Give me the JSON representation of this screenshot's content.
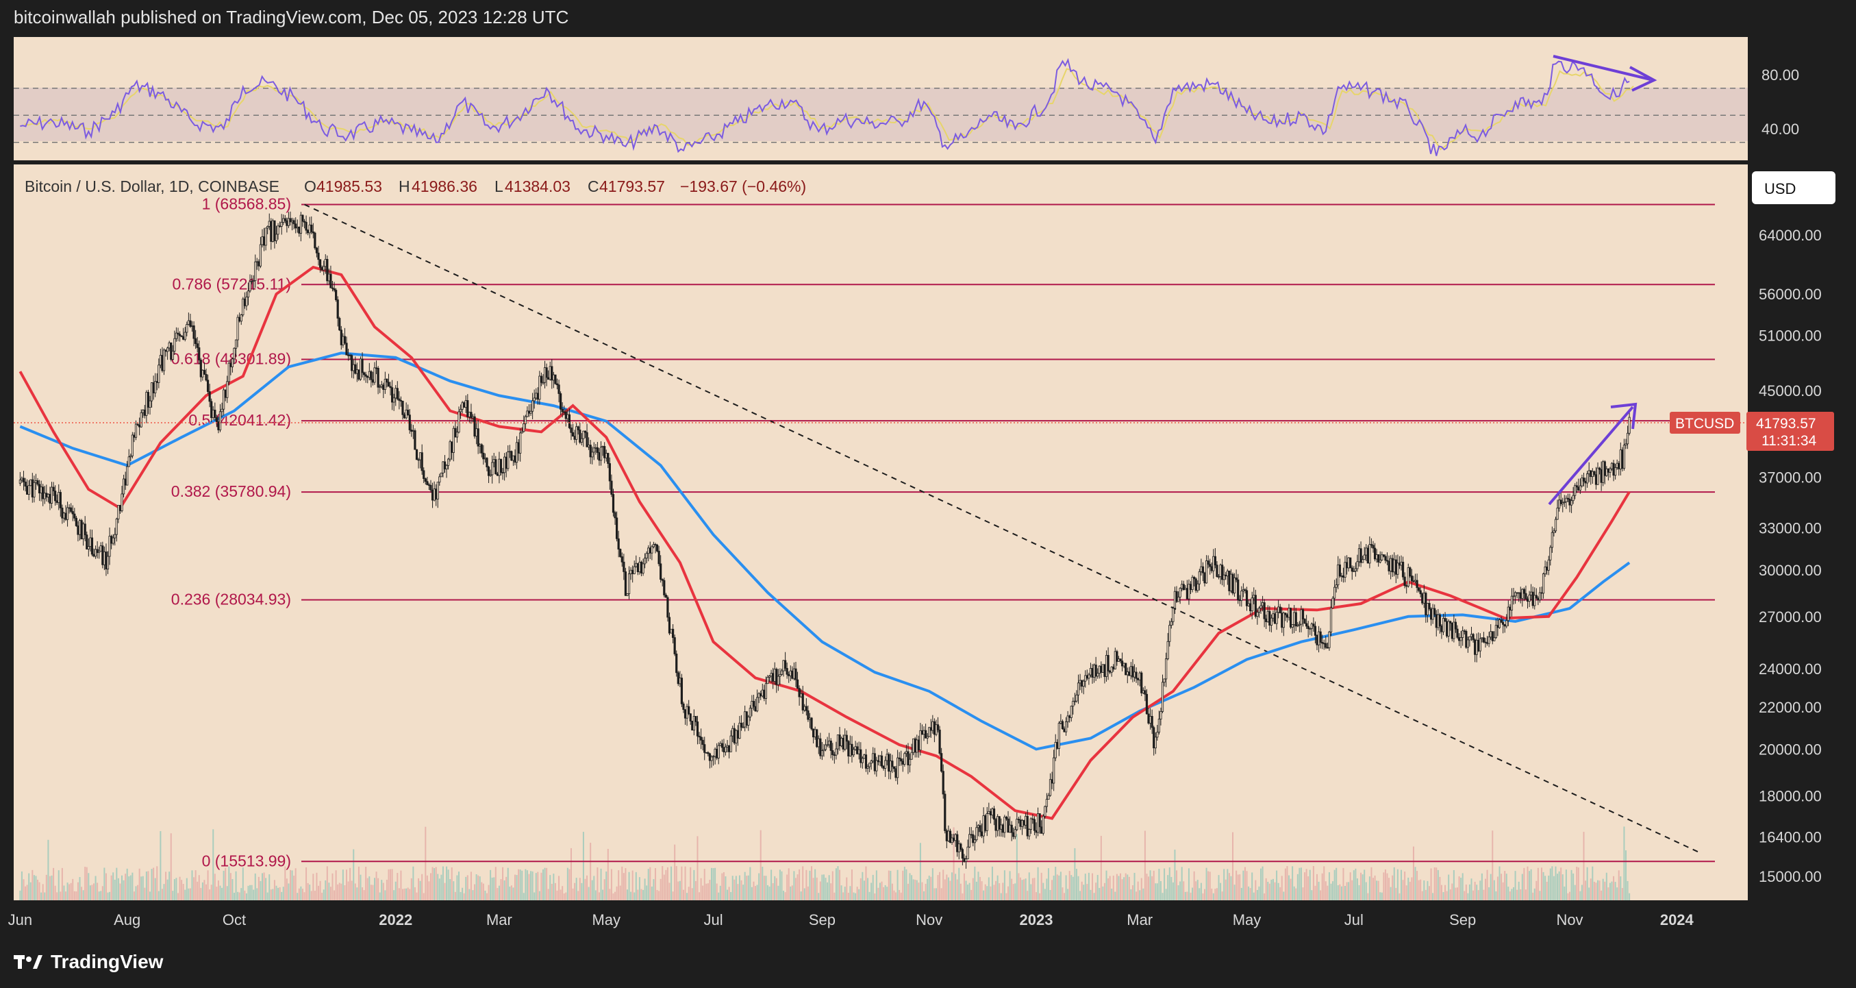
{
  "header": {
    "publisher": "bitcoinwallah published on TradingView.com, Dec 05, 2023 12:28 UTC"
  },
  "footer": {
    "brand": "TradingView"
  },
  "colors": {
    "panel_bg": "#f2dfca",
    "page_bg": "#1e1e1e",
    "fib_line": "#b0174a",
    "ma_red": "#e8343f",
    "ma_blue": "#2a8ff0",
    "rsi": "#7b5be0",
    "rsi_signal": "#e7d56a",
    "arrow": "#6d3fd6",
    "price_badge": "#d94c45",
    "candle_up": "#1d1d1d",
    "candle_down": "#1d1d1d"
  },
  "main": {
    "symbol_line": "Bitcoin / U.S. Dollar, 1D, COINBASE",
    "ohlc": {
      "o_label": "O",
      "o": "41985.53",
      "h_label": "H",
      "h": "41986.36",
      "l_label": "L",
      "l": "41384.03",
      "c_label": "C",
      "c": "41793.57",
      "change": "−193.67 (−0.46%)"
    },
    "currency_button": "USD",
    "price_badge": {
      "symbol": "BTCUSD",
      "price": "41793.57",
      "countdown": "11:31:34"
    }
  },
  "chart_data": {
    "type": "line",
    "title": "Bitcoin / U.S. Dollar, 1D, COINBASE",
    "scale": "log",
    "x_ticks": [
      "Jun",
      "Aug",
      "Oct",
      "2022",
      "Mar",
      "May",
      "Jul",
      "Sep",
      "Nov",
      "2023",
      "Mar",
      "May",
      "Jul",
      "Sep",
      "Nov",
      "2024"
    ],
    "y_ticks": [
      "64000.00",
      "56000.00",
      "51000.00",
      "45000.00",
      "37000.00",
      "33000.00",
      "30000.00",
      "27000.00",
      "24000.00",
      "22000.00",
      "20000.00",
      "18000.00",
      "16400.00",
      "15000.00"
    ],
    "fib_levels": [
      {
        "label": "1 (68568.85)",
        "value": 68568.85
      },
      {
        "label": "0.786 (57215.11)",
        "value": 57215.11
      },
      {
        "label": "0.618 (48301.89)",
        "value": 48301.89
      },
      {
        "label": "0.5 (42041.42)",
        "value": 42041.42
      },
      {
        "label": "0.382 (35780.94)",
        "value": 35780.94
      },
      {
        "label": "0.236 (28034.93)",
        "value": 28034.93
      },
      {
        "label": "0 (15513.99)",
        "value": 15513.99
      }
    ],
    "price_close": [
      [
        "2021-06-01",
        36500
      ],
      [
        "2021-06-20",
        35500
      ],
      [
        "2021-07-01",
        33500
      ],
      [
        "2021-07-20",
        30500
      ],
      [
        "2021-08-05",
        40500
      ],
      [
        "2021-08-20",
        48000
      ],
      [
        "2021-09-06",
        52000
      ],
      [
        "2021-09-21",
        41000
      ],
      [
        "2021-10-06",
        55000
      ],
      [
        "2021-10-20",
        64500
      ],
      [
        "2021-11-10",
        66000
      ],
      [
        "2021-11-25",
        57500
      ],
      [
        "2021-12-04",
        48000
      ],
      [
        "2021-12-20",
        46500
      ],
      [
        "2022-01-05",
        43500
      ],
      [
        "2022-01-22",
        35000
      ],
      [
        "2022-02-10",
        44000
      ],
      [
        "2022-02-24",
        37500
      ],
      [
        "2022-03-10",
        39000
      ],
      [
        "2022-03-28",
        47500
      ],
      [
        "2022-04-15",
        40500
      ],
      [
        "2022-05-01",
        38500
      ],
      [
        "2022-05-12",
        29000
      ],
      [
        "2022-05-30",
        31500
      ],
      [
        "2022-06-14",
        22000
      ],
      [
        "2022-06-30",
        19500
      ],
      [
        "2022-07-15",
        20800
      ],
      [
        "2022-08-01",
        23000
      ],
      [
        "2022-08-14",
        24300
      ],
      [
        "2022-08-30",
        20000
      ],
      [
        "2022-09-13",
        20200
      ],
      [
        "2022-09-28",
        19500
      ],
      [
        "2022-10-15",
        19200
      ],
      [
        "2022-10-29",
        20700
      ],
      [
        "2022-11-06",
        21000
      ],
      [
        "2022-11-10",
        16700
      ],
      [
        "2022-11-21",
        15900
      ],
      [
        "2022-12-05",
        17100
      ],
      [
        "2022-12-20",
        16800
      ],
      [
        "2023-01-05",
        16900
      ],
      [
        "2023-01-14",
        20800
      ],
      [
        "2023-01-30",
        23700
      ],
      [
        "2023-02-16",
        24500
      ],
      [
        "2023-03-01",
        23500
      ],
      [
        "2023-03-10",
        20200
      ],
      [
        "2023-03-20",
        28000
      ],
      [
        "2023-04-13",
        30400
      ],
      [
        "2023-05-01",
        28000
      ],
      [
        "2023-05-15",
        27000
      ],
      [
        "2023-06-01",
        26800
      ],
      [
        "2023-06-15",
        25000
      ],
      [
        "2023-06-22",
        30000
      ],
      [
        "2023-07-13",
        31400
      ],
      [
        "2023-08-01",
        29500
      ],
      [
        "2023-08-17",
        26600
      ],
      [
        "2023-09-01",
        25800
      ],
      [
        "2023-09-11",
        25100
      ],
      [
        "2023-10-01",
        27900
      ],
      [
        "2023-10-16",
        28500
      ],
      [
        "2023-10-24",
        34000
      ],
      [
        "2023-11-09",
        36700
      ],
      [
        "2023-11-24",
        37800
      ],
      [
        "2023-12-01",
        38700
      ],
      [
        "2023-12-05",
        41793.57
      ]
    ],
    "ma_red": [
      [
        "2021-06-01",
        47000
      ],
      [
        "2021-06-20",
        41000
      ],
      [
        "2021-07-10",
        36000
      ],
      [
        "2021-07-28",
        34500
      ],
      [
        "2021-08-20",
        40000
      ],
      [
        "2021-09-15",
        44500
      ],
      [
        "2021-10-06",
        46500
      ],
      [
        "2021-10-25",
        56000
      ],
      [
        "2021-11-15",
        59500
      ],
      [
        "2021-12-01",
        58500
      ],
      [
        "2021-12-20",
        52000
      ],
      [
        "2022-01-10",
        48500
      ],
      [
        "2022-02-01",
        43000
      ],
      [
        "2022-03-01",
        41500
      ],
      [
        "2022-03-25",
        41000
      ],
      [
        "2022-04-12",
        43500
      ],
      [
        "2022-05-01",
        40500
      ],
      [
        "2022-05-20",
        35000
      ],
      [
        "2022-06-12",
        30500
      ],
      [
        "2022-07-01",
        25500
      ],
      [
        "2022-07-25",
        23500
      ],
      [
        "2022-08-20",
        22800
      ],
      [
        "2022-09-15",
        21500
      ],
      [
        "2022-10-15",
        20200
      ],
      [
        "2022-11-05",
        19700
      ],
      [
        "2022-11-25",
        18800
      ],
      [
        "2022-12-20",
        17400
      ],
      [
        "2023-01-10",
        17100
      ],
      [
        "2023-02-01",
        19500
      ],
      [
        "2023-02-25",
        21500
      ],
      [
        "2023-03-20",
        22800
      ],
      [
        "2023-04-15",
        26000
      ],
      [
        "2023-05-10",
        27500
      ],
      [
        "2023-06-10",
        27400
      ],
      [
        "2023-07-05",
        27800
      ],
      [
        "2023-08-01",
        29200
      ],
      [
        "2023-08-25",
        28300
      ],
      [
        "2023-09-25",
        26900
      ],
      [
        "2023-10-20",
        27000
      ],
      [
        "2023-11-05",
        29500
      ],
      [
        "2023-11-25",
        33500
      ],
      [
        "2023-12-05",
        35800
      ]
    ],
    "ma_blue": [
      [
        "2021-06-01",
        41500
      ],
      [
        "2021-07-01",
        39500
      ],
      [
        "2021-08-01",
        38000
      ],
      [
        "2021-09-01",
        40500
      ],
      [
        "2021-10-01",
        43000
      ],
      [
        "2021-11-01",
        47500
      ],
      [
        "2021-12-01",
        49000
      ],
      [
        "2022-01-01",
        48500
      ],
      [
        "2022-02-01",
        46000
      ],
      [
        "2022-03-01",
        44500
      ],
      [
        "2022-04-01",
        43500
      ],
      [
        "2022-05-01",
        42000
      ],
      [
        "2022-06-01",
        38000
      ],
      [
        "2022-07-01",
        32500
      ],
      [
        "2022-08-01",
        28500
      ],
      [
        "2022-09-01",
        25500
      ],
      [
        "2022-10-01",
        23800
      ],
      [
        "2022-11-01",
        22800
      ],
      [
        "2022-12-01",
        21300
      ],
      [
        "2023-01-01",
        20000
      ],
      [
        "2023-02-01",
        20500
      ],
      [
        "2023-03-01",
        21800
      ],
      [
        "2023-04-01",
        23000
      ],
      [
        "2023-05-01",
        24500
      ],
      [
        "2023-06-01",
        25500
      ],
      [
        "2023-07-01",
        26200
      ],
      [
        "2023-08-01",
        27000
      ],
      [
        "2023-09-01",
        27100
      ],
      [
        "2023-10-01",
        26700
      ],
      [
        "2023-11-01",
        27500
      ],
      [
        "2023-11-20",
        29200
      ],
      [
        "2023-12-05",
        30500
      ]
    ],
    "trendline": [
      [
        "2021-11-10",
        68568.85
      ],
      [
        "2024-01-15",
        15800
      ]
    ],
    "rsi": {
      "y_ticks": [
        "80.00",
        "40.00"
      ],
      "bands": [
        70,
        50,
        30
      ],
      "values": [
        [
          "2021-06-01",
          42
        ],
        [
          "2021-06-20",
          45
        ],
        [
          "2021-07-10",
          38
        ],
        [
          "2021-07-25",
          52
        ],
        [
          "2021-08-05",
          72
        ],
        [
          "2021-08-20",
          66
        ],
        [
          "2021-09-07",
          45
        ],
        [
          "2021-09-25",
          40
        ],
        [
          "2021-10-06",
          71
        ],
        [
          "2021-10-20",
          74
        ],
        [
          "2021-11-05",
          62
        ],
        [
          "2021-11-20",
          40
        ],
        [
          "2021-12-05",
          35
        ],
        [
          "2021-12-25",
          45
        ],
        [
          "2022-01-10",
          38
        ],
        [
          "2022-01-24",
          30
        ],
        [
          "2022-02-08",
          60
        ],
        [
          "2022-02-24",
          40
        ],
        [
          "2022-03-10",
          47
        ],
        [
          "2022-03-28",
          70
        ],
        [
          "2022-04-15",
          40
        ],
        [
          "2022-05-01",
          35
        ],
        [
          "2022-05-12",
          27
        ],
        [
          "2022-05-30",
          42
        ],
        [
          "2022-06-14",
          24
        ],
        [
          "2022-06-30",
          33
        ],
        [
          "2022-07-15",
          45
        ],
        [
          "2022-08-01",
          58
        ],
        [
          "2022-08-14",
          61
        ],
        [
          "2022-08-30",
          38
        ],
        [
          "2022-09-13",
          47
        ],
        [
          "2022-09-28",
          44
        ],
        [
          "2022-10-15",
          45
        ],
        [
          "2022-10-29",
          60
        ],
        [
          "2022-11-10",
          28
        ],
        [
          "2022-11-22",
          34
        ],
        [
          "2022-12-05",
          50
        ],
        [
          "2022-12-20",
          40
        ],
        [
          "2023-01-08",
          60
        ],
        [
          "2023-01-16",
          90
        ],
        [
          "2023-01-30",
          72
        ],
        [
          "2023-02-16",
          67
        ],
        [
          "2023-03-01",
          48
        ],
        [
          "2023-03-10",
          30
        ],
        [
          "2023-03-20",
          70
        ],
        [
          "2023-04-13",
          73
        ],
        [
          "2023-05-01",
          52
        ],
        [
          "2023-05-15",
          44
        ],
        [
          "2023-06-01",
          50
        ],
        [
          "2023-06-15",
          38
        ],
        [
          "2023-06-22",
          71
        ],
        [
          "2023-07-13",
          68
        ],
        [
          "2023-08-01",
          55
        ],
        [
          "2023-08-17",
          20
        ],
        [
          "2023-09-01",
          38
        ],
        [
          "2023-09-11",
          35
        ],
        [
          "2023-10-01",
          60
        ],
        [
          "2023-10-16",
          58
        ],
        [
          "2023-10-24",
          88
        ],
        [
          "2023-11-09",
          85
        ],
        [
          "2023-11-24",
          62
        ],
        [
          "2023-12-01",
          72
        ],
        [
          "2023-12-05",
          75
        ]
      ]
    }
  }
}
